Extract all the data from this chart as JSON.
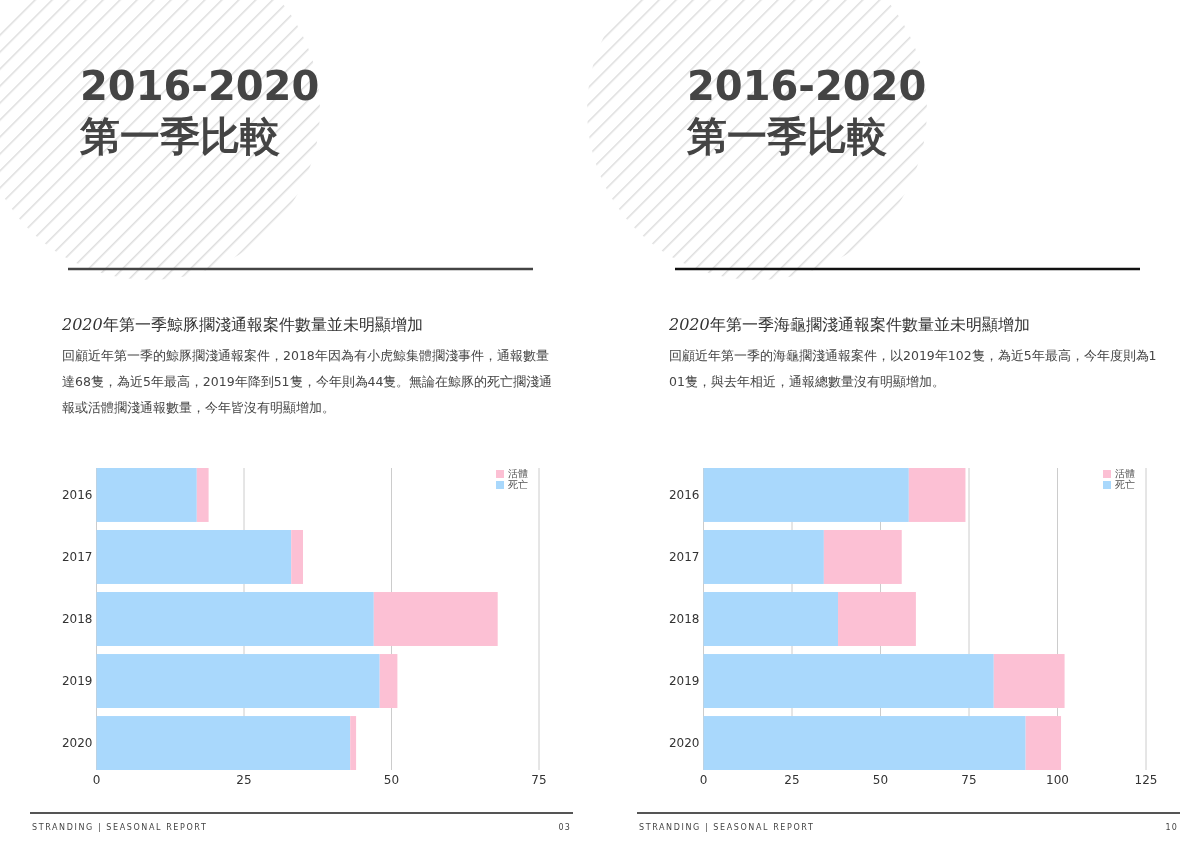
{
  "chart_data": [
    {
      "type": "bar",
      "orientation": "horizontal",
      "stacked": true,
      "title": "2016-2020 第一季比較",
      "subtitle": "2020年第一季鯨豚擱淺通報案件數量並未明顯增加",
      "annotations": [
        "回顧近年第一季的鯨豚擱淺通報案件，2018年因為有小虎鯨集體擱淺事件，通報數量達68隻，為近5年最高，2019年降到51隻，今年則為44隻。無論在鯨豚的死亡擱淺通報或活體擱淺通報數量，今年皆沒有明顯增加。",
        "STRANDING | SEASONAL REPORT",
        "03"
      ],
      "categories": [
        "2016",
        "2017",
        "2018",
        "2019",
        "2020"
      ],
      "series": [
        {
          "name": "死亡",
          "color": "#a9d8fc",
          "values": [
            17,
            33,
            47,
            48,
            43
          ]
        },
        {
          "name": "活體",
          "color": "#fcc0d4",
          "values": [
            2,
            2,
            21,
            3,
            1
          ]
        }
      ],
      "xlim": [
        0,
        75
      ],
      "xticks": [
        0,
        25,
        50,
        75
      ],
      "grid": "x",
      "legend": "top right"
    },
    {
      "type": "bar",
      "orientation": "horizontal",
      "stacked": true,
      "title": "2016-2020 第一季比較",
      "subtitle": "2020年第一季海龜擱淺通報案件數量並未明顯增加",
      "annotations": [
        "回顧近年第一季的海龜擱淺通報案件，以2019年102隻，為近5年最高，今年度則為101隻，與去年相近，通報總數量沒有明顯增加。",
        "STRANDING | SEASONAL REPORT",
        "10"
      ],
      "categories": [
        "2016",
        "2017",
        "2018",
        "2019",
        "2020"
      ],
      "series": [
        {
          "name": "死亡",
          "color": "#a9d8fc",
          "values": [
            58,
            34,
            38,
            82,
            91
          ]
        },
        {
          "name": "活體",
          "color": "#fcc0d4",
          "values": [
            16,
            22,
            22,
            20,
            10
          ]
        }
      ],
      "xlim": [
        0,
        125
      ],
      "xticks": [
        0,
        25,
        50,
        75,
        100,
        125
      ],
      "grid": "x",
      "legend": "top right"
    }
  ]
}
